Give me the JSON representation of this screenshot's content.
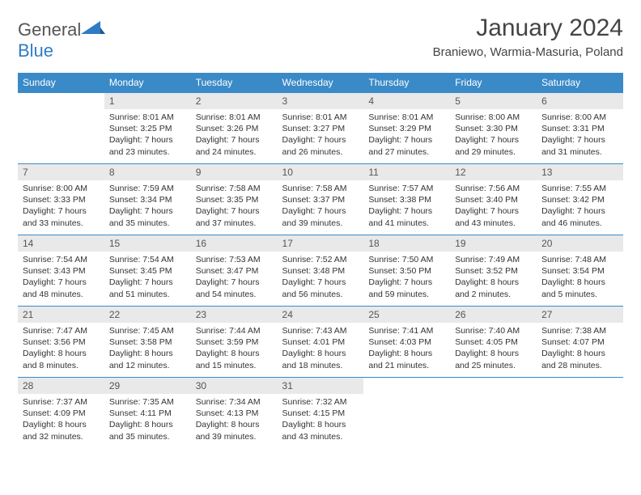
{
  "logo": {
    "text1": "General",
    "text2": "Blue"
  },
  "title": "January 2024",
  "location": "Braniewo, Warmia-Masuria, Poland",
  "colors": {
    "header_bg": "#3a8ac8",
    "header_text": "#ffffff",
    "daynum_bg": "#e9e9e9",
    "border": "#3a8ac8",
    "logo_blue": "#2f7cc4"
  },
  "weekdays": [
    "Sunday",
    "Monday",
    "Tuesday",
    "Wednesday",
    "Thursday",
    "Friday",
    "Saturday"
  ],
  "weeks": [
    [
      {
        "n": "",
        "sr": "",
        "ss": "",
        "dl": ""
      },
      {
        "n": "1",
        "sr": "Sunrise: 8:01 AM",
        "ss": "Sunset: 3:25 PM",
        "dl": "Daylight: 7 hours and 23 minutes."
      },
      {
        "n": "2",
        "sr": "Sunrise: 8:01 AM",
        "ss": "Sunset: 3:26 PM",
        "dl": "Daylight: 7 hours and 24 minutes."
      },
      {
        "n": "3",
        "sr": "Sunrise: 8:01 AM",
        "ss": "Sunset: 3:27 PM",
        "dl": "Daylight: 7 hours and 26 minutes."
      },
      {
        "n": "4",
        "sr": "Sunrise: 8:01 AM",
        "ss": "Sunset: 3:29 PM",
        "dl": "Daylight: 7 hours and 27 minutes."
      },
      {
        "n": "5",
        "sr": "Sunrise: 8:00 AM",
        "ss": "Sunset: 3:30 PM",
        "dl": "Daylight: 7 hours and 29 minutes."
      },
      {
        "n": "6",
        "sr": "Sunrise: 8:00 AM",
        "ss": "Sunset: 3:31 PM",
        "dl": "Daylight: 7 hours and 31 minutes."
      }
    ],
    [
      {
        "n": "7",
        "sr": "Sunrise: 8:00 AM",
        "ss": "Sunset: 3:33 PM",
        "dl": "Daylight: 7 hours and 33 minutes."
      },
      {
        "n": "8",
        "sr": "Sunrise: 7:59 AM",
        "ss": "Sunset: 3:34 PM",
        "dl": "Daylight: 7 hours and 35 minutes."
      },
      {
        "n": "9",
        "sr": "Sunrise: 7:58 AM",
        "ss": "Sunset: 3:35 PM",
        "dl": "Daylight: 7 hours and 37 minutes."
      },
      {
        "n": "10",
        "sr": "Sunrise: 7:58 AM",
        "ss": "Sunset: 3:37 PM",
        "dl": "Daylight: 7 hours and 39 minutes."
      },
      {
        "n": "11",
        "sr": "Sunrise: 7:57 AM",
        "ss": "Sunset: 3:38 PM",
        "dl": "Daylight: 7 hours and 41 minutes."
      },
      {
        "n": "12",
        "sr": "Sunrise: 7:56 AM",
        "ss": "Sunset: 3:40 PM",
        "dl": "Daylight: 7 hours and 43 minutes."
      },
      {
        "n": "13",
        "sr": "Sunrise: 7:55 AM",
        "ss": "Sunset: 3:42 PM",
        "dl": "Daylight: 7 hours and 46 minutes."
      }
    ],
    [
      {
        "n": "14",
        "sr": "Sunrise: 7:54 AM",
        "ss": "Sunset: 3:43 PM",
        "dl": "Daylight: 7 hours and 48 minutes."
      },
      {
        "n": "15",
        "sr": "Sunrise: 7:54 AM",
        "ss": "Sunset: 3:45 PM",
        "dl": "Daylight: 7 hours and 51 minutes."
      },
      {
        "n": "16",
        "sr": "Sunrise: 7:53 AM",
        "ss": "Sunset: 3:47 PM",
        "dl": "Daylight: 7 hours and 54 minutes."
      },
      {
        "n": "17",
        "sr": "Sunrise: 7:52 AM",
        "ss": "Sunset: 3:48 PM",
        "dl": "Daylight: 7 hours and 56 minutes."
      },
      {
        "n": "18",
        "sr": "Sunrise: 7:50 AM",
        "ss": "Sunset: 3:50 PM",
        "dl": "Daylight: 7 hours and 59 minutes."
      },
      {
        "n": "19",
        "sr": "Sunrise: 7:49 AM",
        "ss": "Sunset: 3:52 PM",
        "dl": "Daylight: 8 hours and 2 minutes."
      },
      {
        "n": "20",
        "sr": "Sunrise: 7:48 AM",
        "ss": "Sunset: 3:54 PM",
        "dl": "Daylight: 8 hours and 5 minutes."
      }
    ],
    [
      {
        "n": "21",
        "sr": "Sunrise: 7:47 AM",
        "ss": "Sunset: 3:56 PM",
        "dl": "Daylight: 8 hours and 8 minutes."
      },
      {
        "n": "22",
        "sr": "Sunrise: 7:45 AM",
        "ss": "Sunset: 3:58 PM",
        "dl": "Daylight: 8 hours and 12 minutes."
      },
      {
        "n": "23",
        "sr": "Sunrise: 7:44 AM",
        "ss": "Sunset: 3:59 PM",
        "dl": "Daylight: 8 hours and 15 minutes."
      },
      {
        "n": "24",
        "sr": "Sunrise: 7:43 AM",
        "ss": "Sunset: 4:01 PM",
        "dl": "Daylight: 8 hours and 18 minutes."
      },
      {
        "n": "25",
        "sr": "Sunrise: 7:41 AM",
        "ss": "Sunset: 4:03 PM",
        "dl": "Daylight: 8 hours and 21 minutes."
      },
      {
        "n": "26",
        "sr": "Sunrise: 7:40 AM",
        "ss": "Sunset: 4:05 PM",
        "dl": "Daylight: 8 hours and 25 minutes."
      },
      {
        "n": "27",
        "sr": "Sunrise: 7:38 AM",
        "ss": "Sunset: 4:07 PM",
        "dl": "Daylight: 8 hours and 28 minutes."
      }
    ],
    [
      {
        "n": "28",
        "sr": "Sunrise: 7:37 AM",
        "ss": "Sunset: 4:09 PM",
        "dl": "Daylight: 8 hours and 32 minutes."
      },
      {
        "n": "29",
        "sr": "Sunrise: 7:35 AM",
        "ss": "Sunset: 4:11 PM",
        "dl": "Daylight: 8 hours and 35 minutes."
      },
      {
        "n": "30",
        "sr": "Sunrise: 7:34 AM",
        "ss": "Sunset: 4:13 PM",
        "dl": "Daylight: 8 hours and 39 minutes."
      },
      {
        "n": "31",
        "sr": "Sunrise: 7:32 AM",
        "ss": "Sunset: 4:15 PM",
        "dl": "Daylight: 8 hours and 43 minutes."
      },
      {
        "n": "",
        "sr": "",
        "ss": "",
        "dl": ""
      },
      {
        "n": "",
        "sr": "",
        "ss": "",
        "dl": ""
      },
      {
        "n": "",
        "sr": "",
        "ss": "",
        "dl": ""
      }
    ]
  ]
}
